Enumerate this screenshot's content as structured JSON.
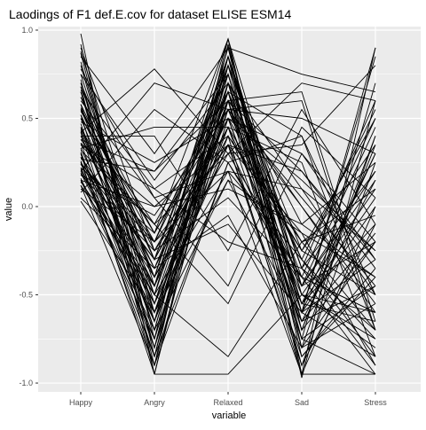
{
  "chart_data": {
    "type": "line",
    "title": "Laodings of F1 def.E.cov for dataset ELISE ESM14",
    "xlabel": "variable",
    "ylabel": "value",
    "categories": [
      "Happy",
      "Angry",
      "Relaxed",
      "Sad",
      "Stress"
    ],
    "ylim": [
      -1.05,
      1.02
    ],
    "yticks": [
      1.0,
      0.5,
      0.0,
      -0.5,
      -1.0
    ],
    "ytick_labels": [
      "1.0",
      "0.5",
      "0.0",
      "-0.5",
      "-1.0"
    ],
    "grid": true,
    "panel_background": "#EBEBEB",
    "gridline_color": "#FFFFFF",
    "line_color": "#000000",
    "series": [
      {
        "values": [
          0.98,
          -0.95,
          0.7,
          -0.6,
          0.9
        ]
      },
      {
        "values": [
          0.92,
          -0.85,
          0.85,
          -0.97,
          0.6
        ]
      },
      {
        "values": [
          0.87,
          -0.75,
          0.95,
          -0.8,
          0.4
        ]
      },
      {
        "values": [
          0.8,
          -0.65,
          0.65,
          -0.55,
          0.3
        ]
      },
      {
        "values": [
          0.75,
          -0.55,
          0.55,
          -0.45,
          0.2
        ]
      },
      {
        "values": [
          0.72,
          -0.9,
          0.92,
          -0.7,
          -0.2
        ]
      },
      {
        "values": [
          0.68,
          -0.4,
          0.8,
          -0.35,
          -0.7
        ]
      },
      {
        "values": [
          0.65,
          -0.6,
          0.6,
          -0.9,
          0.25
        ]
      },
      {
        "values": [
          0.62,
          -0.3,
          0.45,
          -0.25,
          -0.5
        ]
      },
      {
        "values": [
          0.58,
          -0.7,
          0.75,
          -0.6,
          -0.3
        ]
      },
      {
        "values": [
          0.55,
          -0.2,
          0.35,
          -0.15,
          -0.9
        ]
      },
      {
        "values": [
          0.52,
          -0.8,
          0.85,
          -0.5,
          0.1
        ]
      },
      {
        "values": [
          0.5,
          -0.5,
          0.7,
          -0.4,
          -0.6
        ]
      },
      {
        "values": [
          0.48,
          0.25,
          0.5,
          0.3,
          -0.2
        ]
      },
      {
        "values": [
          0.45,
          -0.35,
          0.65,
          -0.7,
          0.4
        ]
      },
      {
        "values": [
          0.43,
          -0.6,
          0.55,
          -0.3,
          -0.85
        ]
      },
      {
        "values": [
          0.42,
          0.78,
          0.3,
          0.7,
          0.6
        ]
      },
      {
        "values": [
          0.4,
          -0.45,
          0.9,
          -0.85,
          -0.4
        ]
      },
      {
        "values": [
          0.38,
          -0.2,
          0.2,
          0.1,
          -0.5
        ]
      },
      {
        "values": [
          0.36,
          -0.75,
          0.6,
          -0.55,
          -0.1
        ]
      },
      {
        "values": [
          0.35,
          0.1,
          0.4,
          -0.2,
          -0.7
        ]
      },
      {
        "values": [
          0.33,
          -0.55,
          0.75,
          -0.65,
          0.15
        ]
      },
      {
        "values": [
          0.32,
          -0.1,
          0.3,
          -0.4,
          -0.95
        ]
      },
      {
        "values": [
          0.3,
          -0.65,
          0.85,
          -0.45,
          -0.2
        ]
      },
      {
        "values": [
          0.28,
          -0.3,
          0.5,
          -0.6,
          0.3
        ]
      },
      {
        "values": [
          0.27,
          0.2,
          0.6,
          0.0,
          -0.6
        ]
      },
      {
        "values": [
          0.25,
          -0.85,
          0.7,
          -0.75,
          -0.45
        ]
      },
      {
        "values": [
          0.24,
          -0.4,
          0.4,
          -0.25,
          0.5
        ]
      },
      {
        "values": [
          0.22,
          -0.15,
          0.95,
          -0.95,
          0.0
        ]
      },
      {
        "values": [
          0.21,
          -0.5,
          0.2,
          -0.3,
          -0.75
        ]
      },
      {
        "values": [
          0.2,
          0.7,
          0.55,
          0.6,
          -0.7
        ]
      },
      {
        "values": [
          0.19,
          -0.6,
          0.65,
          -0.8,
          -0.55
        ]
      },
      {
        "values": [
          0.18,
          -0.25,
          0.35,
          0.2,
          -0.3
        ]
      },
      {
        "values": [
          0.16,
          -0.7,
          0.8,
          -0.35,
          0.2
        ]
      },
      {
        "values": [
          0.15,
          0.0,
          0.1,
          -0.1,
          -0.4
        ]
      },
      {
        "values": [
          0.14,
          -0.45,
          0.45,
          -0.5,
          -0.8
        ]
      },
      {
        "values": [
          0.12,
          -0.9,
          0.6,
          -0.7,
          0.35
        ]
      },
      {
        "values": [
          0.1,
          -0.2,
          0.75,
          -0.55,
          -0.65
        ]
      },
      {
        "values": [
          0.08,
          0.55,
          0.25,
          0.4,
          -0.5
        ]
      },
      {
        "values": [
          0.05,
          -0.35,
          0.5,
          -0.2,
          0.1
        ]
      },
      {
        "values": [
          0.03,
          -0.6,
          0.15,
          -0.65,
          -0.15
        ]
      },
      {
        "values": [
          0.6,
          0.05,
          -0.45,
          0.45,
          0.05
        ]
      },
      {
        "values": [
          0.5,
          -0.1,
          -0.55,
          0.3,
          -0.3
        ]
      },
      {
        "values": [
          0.4,
          0.4,
          -0.25,
          0.55,
          -0.1
        ]
      },
      {
        "values": [
          0.7,
          -0.5,
          -0.85,
          -0.2,
          -0.05
        ]
      },
      {
        "values": [
          0.3,
          -0.95,
          -0.95,
          -0.5,
          -0.75
        ]
      },
      {
        "values": [
          0.85,
          0.3,
          0.9,
          0.75,
          0.65
        ]
      },
      {
        "values": [
          0.55,
          -0.4,
          0.3,
          0.35,
          0.8
        ]
      },
      {
        "values": [
          0.45,
          -0.65,
          0.4,
          -0.95,
          -0.95
        ]
      },
      {
        "values": [
          0.25,
          -0.3,
          -0.1,
          -0.6,
          0.85
        ]
      },
      {
        "values": [
          0.65,
          -0.8,
          0.5,
          0.15,
          -0.25
        ]
      },
      {
        "values": [
          0.35,
          -0.1,
          0.65,
          -0.3,
          0.55
        ]
      },
      {
        "values": [
          0.2,
          -0.55,
          0.35,
          -0.85,
          -0.35
        ]
      },
      {
        "values": [
          0.9,
          -0.25,
          0.05,
          -0.4,
          -0.6
        ]
      },
      {
        "values": [
          0.75,
          0.15,
          0.7,
          -0.1,
          0.25
        ]
      },
      {
        "values": [
          0.15,
          -0.75,
          0.55,
          0.05,
          -0.45
        ]
      },
      {
        "values": [
          0.58,
          -0.3,
          0.8,
          -0.75,
          0.7
        ]
      },
      {
        "values": [
          0.42,
          -0.85,
          0.25,
          -0.45,
          0.45
        ]
      },
      {
        "values": [
          0.33,
          0.45,
          0.45,
          0.25,
          -0.85
        ]
      },
      {
        "values": [
          0.62,
          -0.15,
          0.6,
          0.65,
          -0.65
        ]
      },
      {
        "values": [
          0.28,
          -0.45,
          0.85,
          -0.35,
          -0.9
        ]
      },
      {
        "values": [
          0.82,
          -0.6,
          0.35,
          -0.55,
          0.05
        ]
      },
      {
        "values": [
          0.18,
          -0.05,
          0.55,
          0.5,
          0.3
        ]
      },
      {
        "values": [
          0.47,
          -0.7,
          0.15,
          -0.15,
          -0.4
        ]
      },
      {
        "values": [
          0.38,
          0.2,
          0.75,
          -0.6,
          0.0
        ]
      },
      {
        "values": [
          0.52,
          -0.35,
          -0.05,
          -0.8,
          -0.2
        ]
      },
      {
        "values": [
          0.68,
          -0.95,
          0.8,
          -0.25,
          0.35
        ]
      },
      {
        "values": [
          0.24,
          -0.2,
          0.65,
          0.4,
          -0.7
        ]
      },
      {
        "values": [
          0.12,
          -0.5,
          0.9,
          -0.5,
          -0.6
        ]
      },
      {
        "values": [
          0.78,
          0.05,
          0.2,
          -0.95,
          0.9
        ]
      },
      {
        "values": [
          0.56,
          -0.25,
          0.5,
          -0.65,
          -0.45
        ]
      },
      {
        "values": [
          0.31,
          -0.8,
          0.7,
          0.1,
          -0.25
        ]
      },
      {
        "values": [
          0.66,
          0.1,
          -0.2,
          -0.35,
          0.6
        ]
      },
      {
        "values": [
          0.44,
          -0.4,
          0.95,
          -0.45,
          0.15
        ]
      },
      {
        "values": [
          0.22,
          -0.65,
          0.45,
          -0.75,
          -0.95
        ]
      },
      {
        "values": [
          0.88,
          -0.45,
          0.6,
          0.2,
          -0.35
        ]
      },
      {
        "values": [
          0.36,
          0.0,
          0.35,
          -0.9,
          -0.1
        ]
      },
      {
        "values": [
          0.7,
          -0.3,
          0.85,
          -0.6,
          -0.85
        ]
      },
      {
        "values": [
          0.26,
          -0.9,
          0.25,
          -0.4,
          0.5
        ]
      },
      {
        "values": [
          0.54,
          -0.15,
          0.55,
          0.0,
          -0.55
        ]
      }
    ]
  }
}
